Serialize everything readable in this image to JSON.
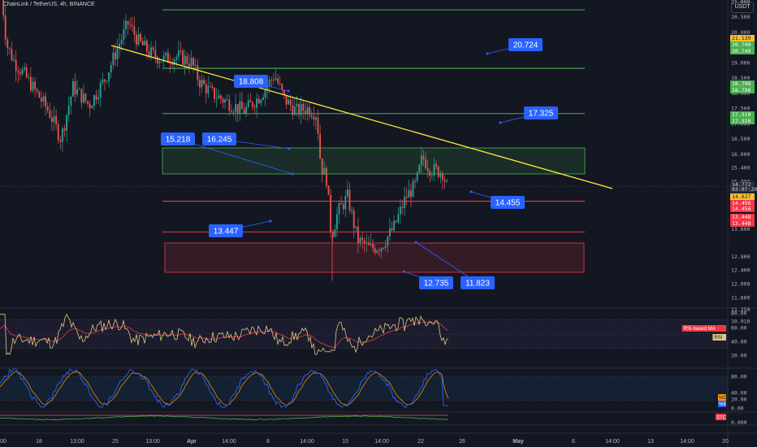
{
  "title": "ChainLink / TetherUS, 4h, BINANCE",
  "currency_button": "USDT",
  "colors": {
    "background": "#131722",
    "up": "#26a69a",
    "down": "#ef5350",
    "trendline": "#ffeb3b",
    "green_level": "#4caf50",
    "red_level": "#f23645",
    "label": "#2962ff",
    "rsi": "#e0c880",
    "rsi_ma": "#f23645",
    "stoch_k": "#2962ff",
    "stoch_d": "#ff9800"
  },
  "chart_data": {
    "type": "candlestick",
    "price_axis": {
      "ticks": [
        "22.500",
        "22.000",
        "21.500",
        "21.000",
        "20.500",
        "20.000",
        "19.500",
        "19.000",
        "18.500",
        "18.000",
        "17.500",
        "17.000",
        "16.500",
        "16.000",
        "15.400",
        "15.000",
        "14.200",
        "13.600",
        "12.800",
        "12.400",
        "12.000",
        "11.600",
        "11.250",
        "10.910"
      ]
    },
    "time_axis": [
      "00",
      "18",
      "13:00",
      "25",
      "13:00",
      "Apr",
      "14:00",
      "8",
      "14:00",
      "15",
      "14:00",
      "22",
      "26",
      "May",
      "6",
      "14:00",
      "13",
      "14:00",
      "20"
    ],
    "levels": [
      {
        "name": "green-level-20724",
        "value": 20.724,
        "color": "green"
      },
      {
        "name": "green-level-18808",
        "value": 18.808,
        "color": "green"
      },
      {
        "name": "green-level-17325",
        "value": 17.325,
        "color": "green"
      },
      {
        "name": "red-level-14455",
        "value": 14.455,
        "color": "red"
      },
      {
        "name": "red-level-13447",
        "value": 13.447,
        "color": "red"
      }
    ],
    "zones": [
      {
        "name": "green-zone",
        "from": 15.218,
        "to": 16.245
      },
      {
        "name": "red-zone",
        "from": 11.823,
        "to": 12.735
      }
    ],
    "trendline": {
      "from": [
        0,
        21.05
      ],
      "to": [
        1,
        14.48
      ]
    },
    "labels": [
      {
        "name": "label-20724",
        "text": "20.724"
      },
      {
        "name": "label-18808",
        "text": "18.808"
      },
      {
        "name": "label-17325",
        "text": "17.325"
      },
      {
        "name": "label-15218",
        "text": "15.218"
      },
      {
        "name": "label-16245",
        "text": "16.245"
      },
      {
        "name": "label-14455",
        "text": "14.455"
      },
      {
        "name": "label-13447",
        "text": "13.447"
      },
      {
        "name": "label-12735",
        "text": "12.735"
      },
      {
        "name": "label-11823",
        "text": "11.823"
      }
    ],
    "price_tags": [
      {
        "text": "21.139",
        "bg": "#fbc02d",
        "fg": "#131722"
      },
      {
        "text": "20.749",
        "bg": "#4caf50",
        "fg": "#ffffff"
      },
      {
        "text": "20.749",
        "bg": "#4caf50",
        "fg": "#ffffff"
      },
      {
        "text": "18.798",
        "bg": "#4caf50",
        "fg": "#ffffff"
      },
      {
        "text": "18.798",
        "bg": "#4caf50",
        "fg": "#ffffff"
      },
      {
        "text": "17.310",
        "bg": "#4caf50",
        "fg": "#ffffff"
      },
      {
        "text": "17.310",
        "bg": "#4caf50",
        "fg": "#ffffff"
      },
      {
        "text": "14.772",
        "bg": "#2a2e39",
        "fg": "#d1d4dc"
      },
      {
        "text": "03:07:29",
        "bg": "#2a2e39",
        "fg": "#d1d4dc"
      },
      {
        "text": "14.627",
        "bg": "#fbc02d",
        "fg": "#131722"
      },
      {
        "text": "14.456",
        "bg": "#f23645",
        "fg": "#ffffff"
      },
      {
        "text": "14.456",
        "bg": "#f23645",
        "fg": "#ffffff"
      },
      {
        "text": "13.448",
        "bg": "#f23645",
        "fg": "#ffffff"
      },
      {
        "text": "13.448",
        "bg": "#f23645",
        "fg": "#ffffff"
      }
    ],
    "rsi_panel": {
      "ticks": [
        "80.00",
        "60.00",
        "40.00",
        "20.00"
      ],
      "labels": [
        {
          "text": "RSI-based MA",
          "bg": "#f23645",
          "fg": "#ffffff"
        },
        {
          "text": "RSI",
          "bg": "#e0c880",
          "fg": "#131722"
        }
      ]
    },
    "stoch_panel": {
      "ticks": [
        "80.00",
        "40.00",
        "20.00",
        "0.00"
      ],
      "labels": [
        {
          "text": "%D",
          "bg": "#ff9800",
          "fg": "#131722"
        },
        {
          "text": "%K",
          "bg": "#2962ff",
          "fg": "#ffffff"
        }
      ]
    },
    "stc_panel": {
      "ticks": [
        "0.000"
      ],
      "labels": [
        {
          "text": "STC",
          "bg": "#f23645",
          "fg": "#ffffff"
        }
      ]
    }
  }
}
